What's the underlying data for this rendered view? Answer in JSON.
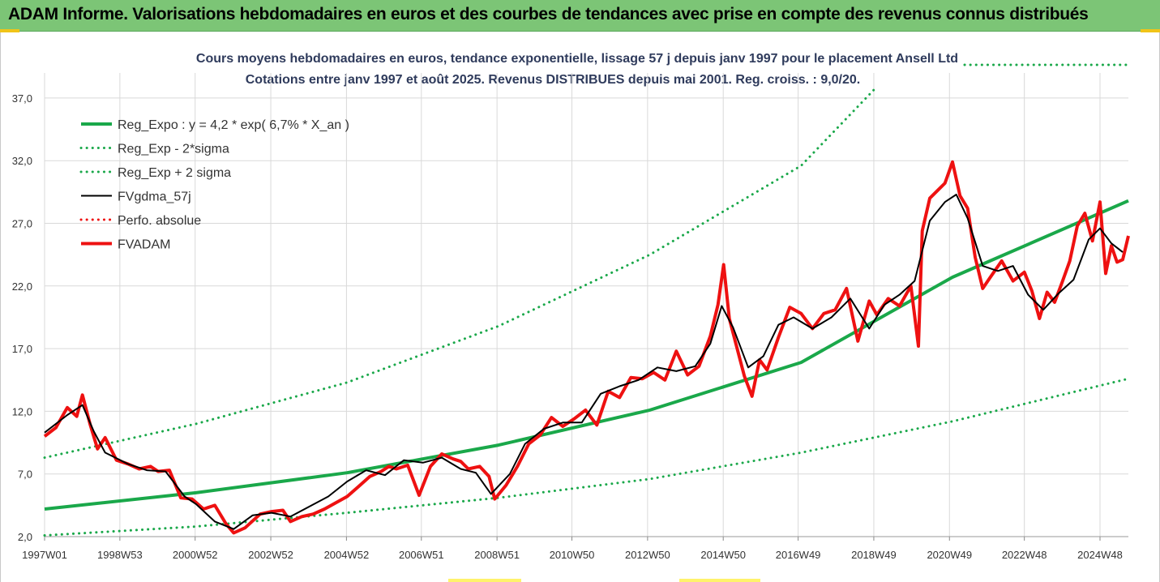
{
  "header": {
    "title": "ADAM Informe. Valorisations hebdomadaires en euros et des courbes de tendances avec prise en compte des revenus connus distribués"
  },
  "colors": {
    "header_bg": "#7cc576",
    "trend": "#1aa84a",
    "fv": "#ee1111",
    "fvgdma": "#000000",
    "grid": "#d9d9d9"
  },
  "chart_data": {
    "type": "line",
    "title": "Cours moyens hebdomadaires en euros, tendance exponentielle, lissage 57 j depuis janv 1997 pour le placement Ansell Ltd",
    "subtitle": "Cotations entre janv 1997 et août 2025. Revenus DISTRIBUES depuis mai 2001. Reg. croiss. : 9,0/20.",
    "xlabel": "",
    "ylabel": "",
    "ylim": [
      2.0,
      39.0
    ],
    "xlim": [
      1997.0,
      2025.65
    ],
    "grid": true,
    "legend_position": "top-left",
    "y_ticks": [
      "2,0",
      "7,0",
      "12,0",
      "17,0",
      "22,0",
      "27,0",
      "32,0",
      "37,0"
    ],
    "x_ticks": [
      {
        "label": "1997W01",
        "x": 1997.0
      },
      {
        "label": "1998W53",
        "x": 1998.99
      },
      {
        "label": "2000W52",
        "x": 2000.98
      },
      {
        "label": "2002W52",
        "x": 2002.98
      },
      {
        "label": "2004W52",
        "x": 2004.98
      },
      {
        "label": "2006W51",
        "x": 2006.96
      },
      {
        "label": "2008W51",
        "x": 2008.96
      },
      {
        "label": "2010W50",
        "x": 2010.94
      },
      {
        "label": "2012W50",
        "x": 2012.94
      },
      {
        "label": "2014W50",
        "x": 2014.94
      },
      {
        "label": "2016W49",
        "x": 2016.92
      },
      {
        "label": "2018W49",
        "x": 2018.92
      },
      {
        "label": "2020W49",
        "x": 2020.92
      },
      {
        "label": "2022W48",
        "x": 2022.9
      },
      {
        "label": "2024W48",
        "x": 2024.9
      }
    ],
    "series": [
      {
        "name": "Reg_Expo : y = 4,2 * exp( 6,7% *  X_an )",
        "style": "solid-thick",
        "color": "#1aa84a",
        "x": [
          1997.0,
          2001.0,
          2005.0,
          2009.0,
          2013.0,
          2017.0,
          2021.0,
          2025.65
        ],
        "values": [
          4.2,
          5.5,
          7.1,
          9.3,
          12.1,
          15.9,
          22.7,
          28.8
        ]
      },
      {
        "name": "Reg_Exp - 2*sigma",
        "style": "dotted",
        "color": "#1aa84a",
        "x": [
          1997.0,
          2001.0,
          2005.0,
          2009.0,
          2013.0,
          2017.0,
          2021.0,
          2025.65
        ],
        "values": [
          2.1,
          2.8,
          3.9,
          5.1,
          6.6,
          8.7,
          11.2,
          14.6
        ]
      },
      {
        "name": "Reg_Exp + 2 sigma",
        "style": "dotted",
        "color": "#1aa84a",
        "x": [
          1997.0,
          2001.0,
          2005.0,
          2009.0,
          2013.0,
          2017.0,
          2019.0
        ],
        "values": [
          8.3,
          11.0,
          14.3,
          18.8,
          24.5,
          31.6,
          37.9
        ]
      },
      {
        "name": "FVgdma_57j",
        "style": "solid",
        "color": "#000000",
        "x": [
          1997.0,
          1997.6,
          1998.0,
          1998.3,
          1998.6,
          1999.2,
          1999.7,
          2000.2,
          2000.7,
          2001.0,
          2001.5,
          2002.0,
          2002.5,
          2003.0,
          2003.5,
          2004.0,
          2004.5,
          2005.0,
          2005.5,
          2006.0,
          2006.5,
          2007.0,
          2007.5,
          2008.0,
          2008.4,
          2008.8,
          2009.3,
          2009.7,
          2010.2,
          2010.7,
          2011.2,
          2011.7,
          2012.2,
          2012.7,
          2013.2,
          2013.7,
          2014.2,
          2014.6,
          2014.9,
          2015.2,
          2015.6,
          2016.0,
          2016.4,
          2016.8,
          2017.3,
          2017.8,
          2018.3,
          2018.8,
          2019.2,
          2019.6,
          2020.0,
          2020.4,
          2020.8,
          2021.1,
          2021.4,
          2021.8,
          2022.2,
          2022.6,
          2023.0,
          2023.4,
          2023.8,
          2024.2,
          2024.6,
          2024.9,
          2025.2,
          2025.5
        ],
        "values": [
          10.3,
          11.7,
          12.5,
          10.4,
          8.7,
          7.8,
          7.3,
          7.2,
          5.2,
          4.6,
          3.2,
          2.6,
          3.7,
          3.9,
          3.6,
          4.4,
          5.2,
          6.4,
          7.3,
          6.9,
          8.1,
          7.9,
          8.3,
          7.4,
          7.1,
          5.4,
          7.0,
          9.4,
          10.6,
          11.1,
          11.1,
          13.4,
          14.0,
          14.5,
          15.5,
          15.2,
          15.6,
          17.4,
          20.4,
          18.7,
          15.5,
          16.4,
          18.9,
          19.5,
          18.6,
          19.5,
          21.0,
          18.6,
          20.5,
          21.3,
          22.4,
          27.2,
          28.7,
          29.3,
          27.4,
          23.6,
          23.2,
          23.6,
          21.3,
          20.1,
          21.4,
          22.5,
          25.7,
          26.6,
          25.4,
          24.7
        ]
      },
      {
        "name": "Perfo. absolue",
        "style": "dotted",
        "color": "#ee1111",
        "x": [],
        "values": []
      },
      {
        "name": "FVADAM",
        "style": "solid-thick",
        "color": "#ee1111",
        "x": [
          1997.0,
          1997.3,
          1997.6,
          1997.85,
          1998.0,
          1998.2,
          1998.4,
          1998.6,
          1998.9,
          1999.2,
          1999.5,
          1999.8,
          2000.0,
          2000.3,
          2000.6,
          2000.9,
          2001.2,
          2001.5,
          2001.8,
          2002.0,
          2002.3,
          2002.7,
          2003.0,
          2003.3,
          2003.5,
          2003.8,
          2004.1,
          2004.4,
          2004.7,
          2005.0,
          2005.3,
          2005.6,
          2005.9,
          2006.1,
          2006.3,
          2006.6,
          2006.9,
          2007.2,
          2007.5,
          2007.8,
          2008.0,
          2008.2,
          2008.5,
          2008.75,
          2008.9,
          2009.2,
          2009.5,
          2009.8,
          2010.1,
          2010.4,
          2010.7,
          2011.0,
          2011.3,
          2011.6,
          2011.9,
          2012.2,
          2012.5,
          2012.8,
          2013.1,
          2013.4,
          2013.7,
          2014.0,
          2014.3,
          2014.6,
          2014.8,
          2014.95,
          2015.1,
          2015.3,
          2015.5,
          2015.7,
          2015.9,
          2016.1,
          2016.4,
          2016.7,
          2017.0,
          2017.3,
          2017.6,
          2017.9,
          2018.2,
          2018.5,
          2018.8,
          2019.0,
          2019.3,
          2019.6,
          2019.9,
          2020.1,
          2020.2,
          2020.4,
          2020.6,
          2020.8,
          2021.0,
          2021.2,
          2021.4,
          2021.6,
          2021.8,
          2022.0,
          2022.3,
          2022.6,
          2022.9,
          2023.1,
          2023.3,
          2023.5,
          2023.7,
          2023.9,
          2024.1,
          2024.3,
          2024.5,
          2024.7,
          2024.9,
          2025.05,
          2025.2,
          2025.35,
          2025.5,
          2025.65
        ],
        "values": [
          10.0,
          10.7,
          12.3,
          11.6,
          13.3,
          11.0,
          9.0,
          9.9,
          8.1,
          7.8,
          7.4,
          7.6,
          7.2,
          7.3,
          5.1,
          5.0,
          4.2,
          4.5,
          3.0,
          2.3,
          2.7,
          3.8,
          4.0,
          4.1,
          3.2,
          3.6,
          3.8,
          4.2,
          4.7,
          5.2,
          6.0,
          6.8,
          7.2,
          7.6,
          7.4,
          7.7,
          5.3,
          7.6,
          8.6,
          8.2,
          8.0,
          7.4,
          7.6,
          6.8,
          5.0,
          6.1,
          7.6,
          9.4,
          10.1,
          11.5,
          10.8,
          11.4,
          12.1,
          10.9,
          13.6,
          13.1,
          14.7,
          14.6,
          15.1,
          14.5,
          16.8,
          14.9,
          15.6,
          18.0,
          20.5,
          23.7,
          19.4,
          17.1,
          14.8,
          13.2,
          16.1,
          15.3,
          17.9,
          20.3,
          19.8,
          18.6,
          19.8,
          20.1,
          21.8,
          17.6,
          20.8,
          19.7,
          21.0,
          20.4,
          22.0,
          17.2,
          26.4,
          29.0,
          29.6,
          30.2,
          31.9,
          29.2,
          28.2,
          24.3,
          21.8,
          22.7,
          24.0,
          22.4,
          23.1,
          21.6,
          19.4,
          21.5,
          20.7,
          22.3,
          24.0,
          26.8,
          27.8,
          25.6,
          28.7,
          23.0,
          25.2,
          23.9,
          24.1,
          26.0
        ]
      }
    ]
  }
}
